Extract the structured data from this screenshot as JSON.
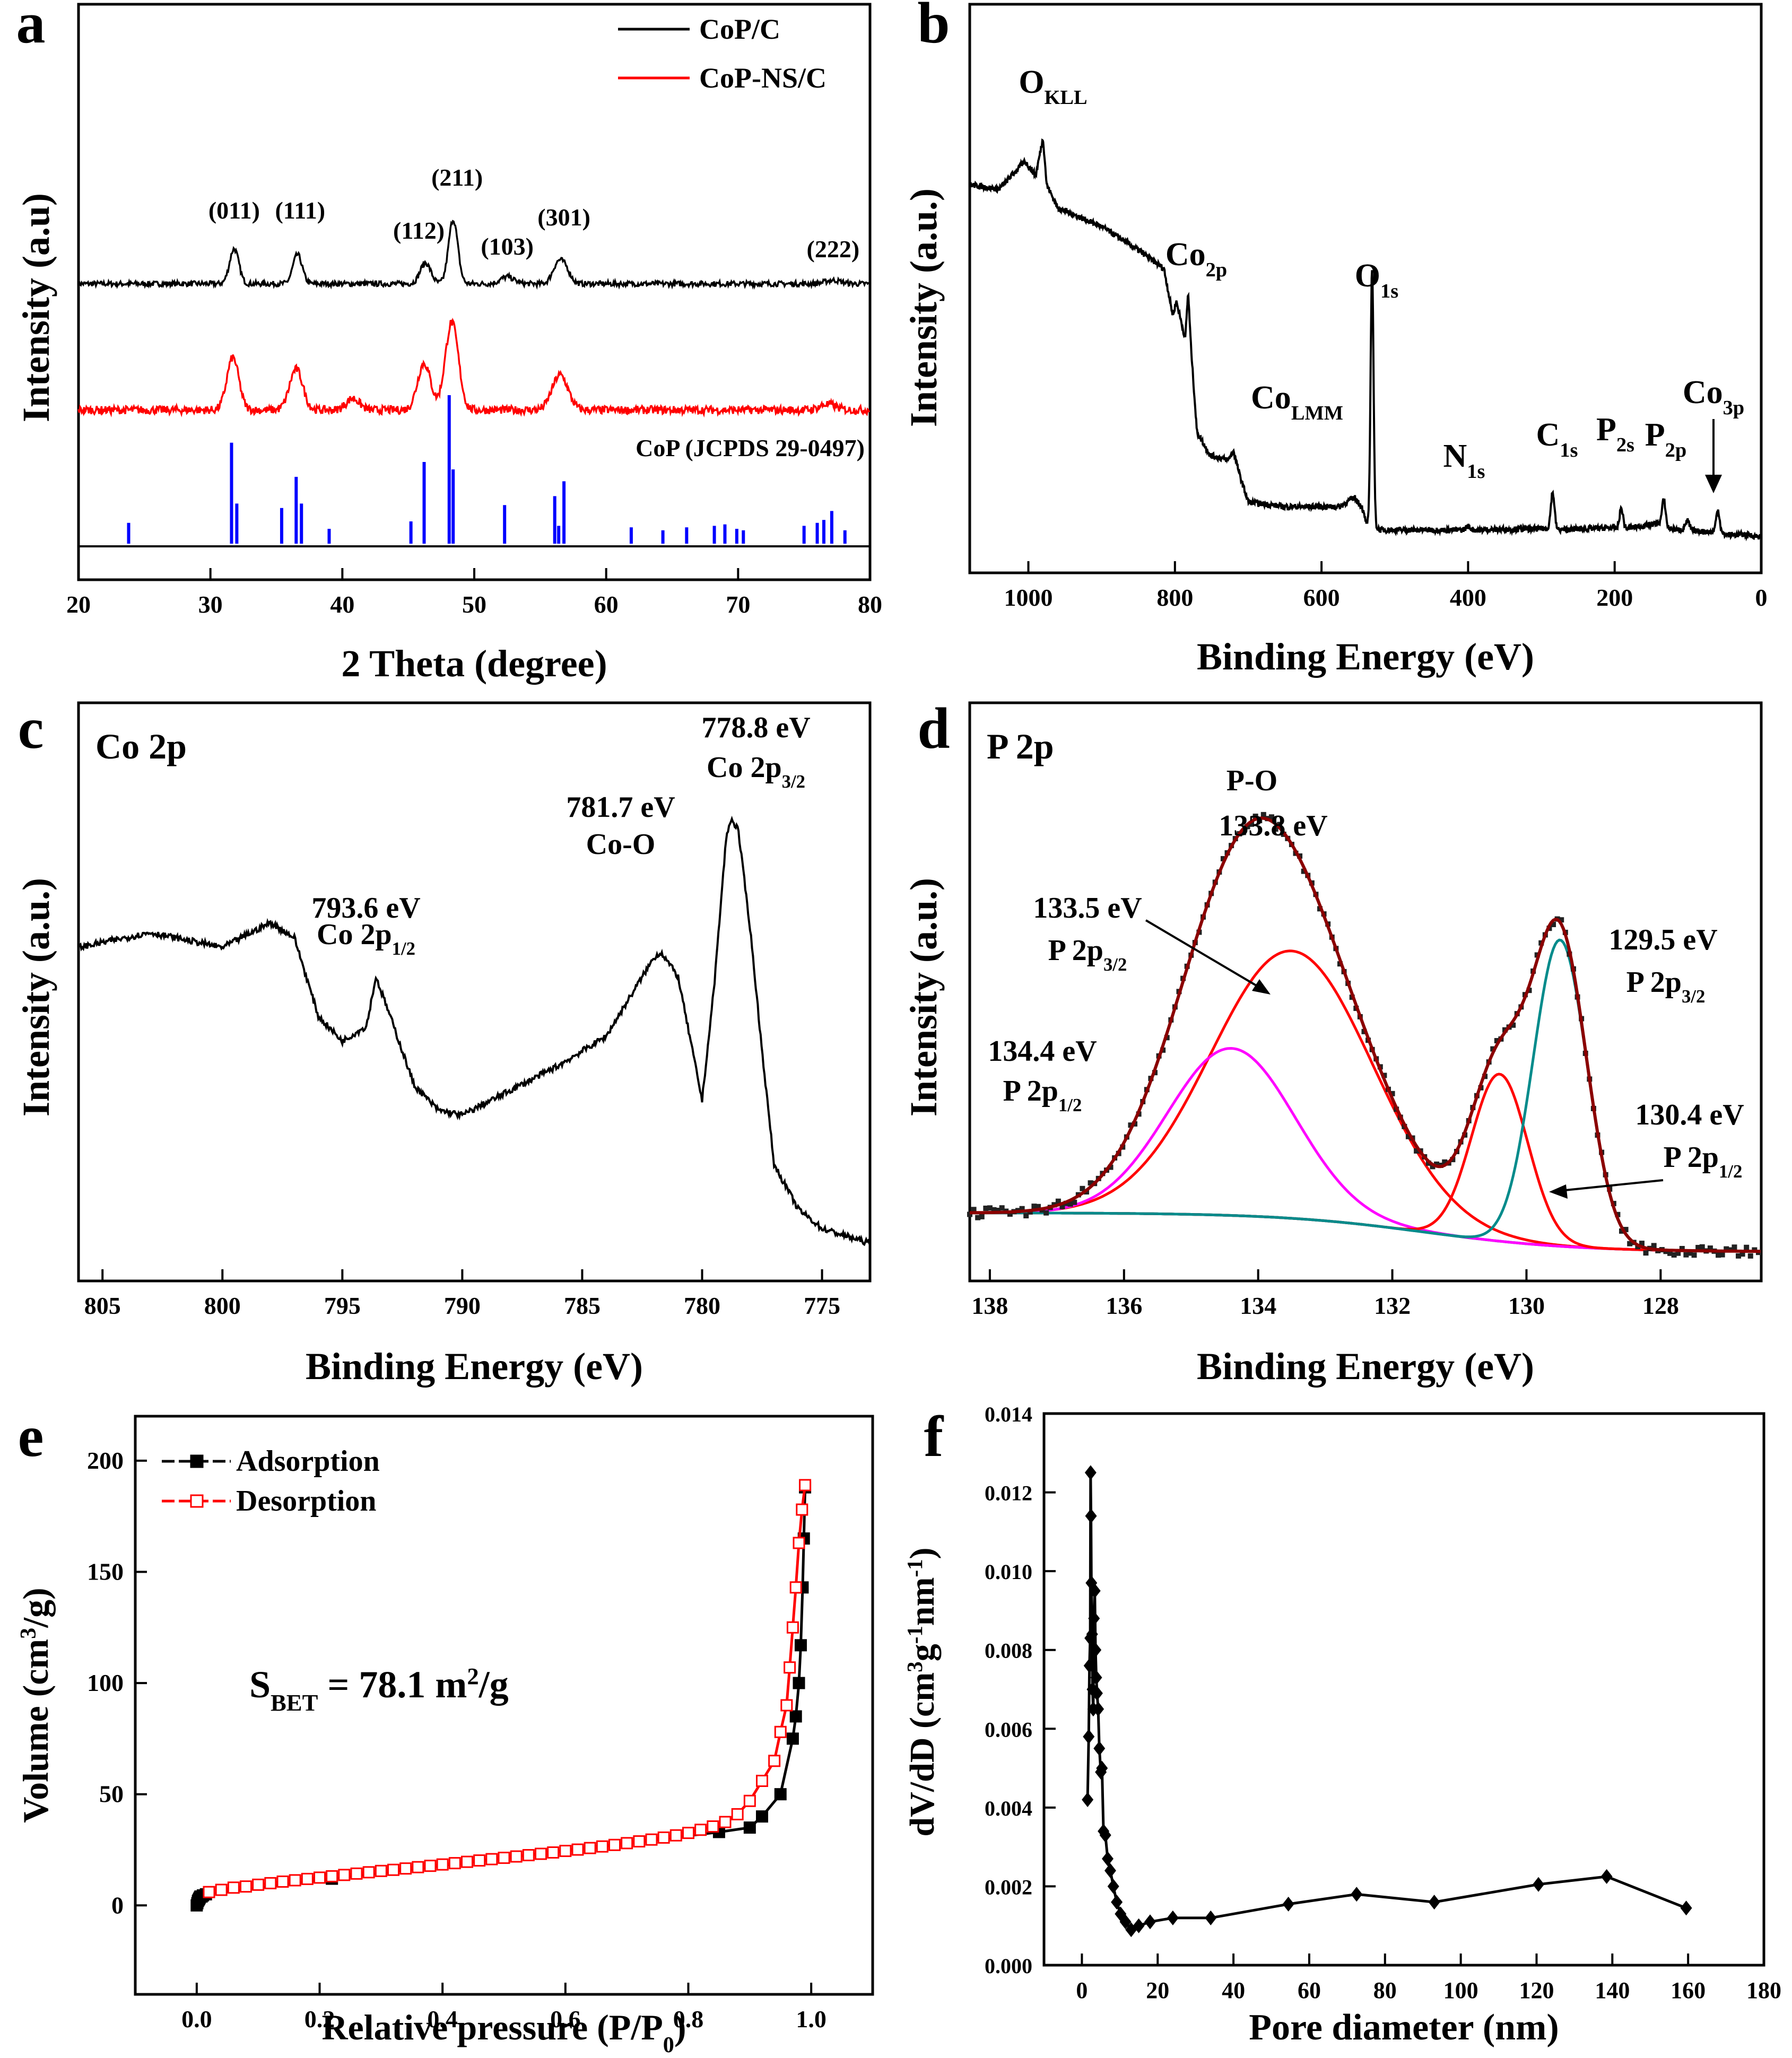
{
  "chart_data": [
    {
      "panel": "a",
      "type": "line",
      "xlabel": "2 Theta (degree)",
      "ylabel": "Intensity (a.u)",
      "xlim": [
        20,
        80
      ],
      "x_ticks": [
        20,
        30,
        40,
        50,
        60,
        70,
        80
      ],
      "legend": {
        "position": "top-right",
        "entries": [
          {
            "name": "CoP/C",
            "color": "#000000"
          },
          {
            "name": "CoP-NS/C",
            "color": "#ff0000"
          }
        ]
      },
      "series": [
        {
          "name": "CoP/C",
          "color": "#000000",
          "baseline": 0.55,
          "peaks": [
            [
              31.8,
              0.3,
              0.35
            ],
            [
              36.6,
              0.25,
              0.35
            ],
            [
              46.3,
              0.18,
              0.4
            ],
            [
              48.4,
              0.55,
              0.35
            ],
            [
              52.5,
              0.06,
              0.5
            ],
            [
              56.3,
              0.15,
              0.4
            ],
            [
              56.9,
              0.12,
              0.4
            ],
            [
              77.2,
              0.03,
              0.6
            ]
          ]
        },
        {
          "name": "CoP-NS/C",
          "color": "#ff0000",
          "baseline": 0.0,
          "peaks": [
            [
              31.7,
              0.45,
              0.45
            ],
            [
              36.5,
              0.35,
              0.5
            ],
            [
              40.8,
              0.1,
              0.5
            ],
            [
              46.2,
              0.4,
              0.5
            ],
            [
              48.3,
              0.75,
              0.5
            ],
            [
              56.5,
              0.3,
              0.6
            ],
            [
              76.8,
              0.05,
              0.6
            ]
          ]
        }
      ],
      "reference": {
        "name": "CoP (JCPDS 29-0497)",
        "color": "#0000ff",
        "lines": [
          [
            23.8,
            0.14
          ],
          [
            31.6,
            0.68
          ],
          [
            32.0,
            0.27
          ],
          [
            35.4,
            0.24
          ],
          [
            36.5,
            0.45
          ],
          [
            36.9,
            0.27
          ],
          [
            39.0,
            0.1
          ],
          [
            45.2,
            0.15
          ],
          [
            46.2,
            0.55
          ],
          [
            48.1,
            1.0
          ],
          [
            48.4,
            0.5
          ],
          [
            52.3,
            0.26
          ],
          [
            56.1,
            0.32
          ],
          [
            56.4,
            0.12
          ],
          [
            56.8,
            0.42
          ],
          [
            61.9,
            0.11
          ],
          [
            64.3,
            0.09
          ],
          [
            66.1,
            0.11
          ],
          [
            68.2,
            0.12
          ],
          [
            69.0,
            0.13
          ],
          [
            69.9,
            0.1
          ],
          [
            70.4,
            0.09
          ],
          [
            75.0,
            0.12
          ],
          [
            76.0,
            0.14
          ],
          [
            76.5,
            0.16
          ],
          [
            77.1,
            0.22
          ],
          [
            78.1,
            0.09
          ]
        ]
      },
      "peak_labels": [
        {
          "text": "(011)",
          "x": 31.8
        },
        {
          "text": "(111)",
          "x": 36.8
        },
        {
          "text": "(112)",
          "x": 45.8
        },
        {
          "text": "(211)",
          "x": 48.7
        },
        {
          "text": "(103)",
          "x": 52.5
        },
        {
          "text": "(301)",
          "x": 56.8
        },
        {
          "text": "(222)",
          "x": 77.2
        }
      ]
    },
    {
      "panel": "b",
      "type": "line",
      "xlabel": "Binding Energy (eV)",
      "ylabel": "Intensity (a.u.)",
      "xlim": [
        1080,
        0
      ],
      "x_ticks": [
        1000,
        800,
        600,
        400,
        200,
        0
      ],
      "color": "#000000",
      "curve": [
        [
          1080,
          0.75
        ],
        [
          1040,
          0.74
        ],
        [
          1005,
          0.8
        ],
        [
          990,
          0.77
        ],
        [
          980,
          0.85
        ],
        [
          975,
          0.75
        ],
        [
          960,
          0.7
        ],
        [
          900,
          0.66
        ],
        [
          850,
          0.61
        ],
        [
          815,
          0.57
        ],
        [
          803,
          0.47
        ],
        [
          798,
          0.5
        ],
        [
          792,
          0.46
        ],
        [
          786,
          0.42
        ],
        [
          782,
          0.52
        ],
        [
          778,
          0.4
        ],
        [
          770,
          0.22
        ],
        [
          752,
          0.17
        ],
        [
          728,
          0.16
        ],
        [
          720,
          0.18
        ],
        [
          712,
          0.13
        ],
        [
          700,
          0.07
        ],
        [
          650,
          0.06
        ],
        [
          575,
          0.06
        ],
        [
          555,
          0.08
        ],
        [
          545,
          0.06
        ],
        [
          540,
          0.03
        ],
        [
          536,
          0.02
        ],
        [
          531,
          0.02
        ],
        [
          520,
          0.01
        ],
        [
          500,
          0.01
        ],
        [
          402,
          0.01
        ],
        [
          290,
          0.013
        ],
        [
          285,
          0.01
        ],
        [
          200,
          0.015
        ],
        [
          195,
          0.01
        ],
        [
          140,
          0.025
        ],
        [
          135,
          0.015
        ],
        [
          110,
          0.01
        ],
        [
          61,
          0.005
        ],
        [
          57,
          0.0
        ],
        [
          20,
          0.0
        ],
        [
          0,
          -0.005
        ]
      ],
      "peaks": [
        [
          531,
          0.55,
          2
        ],
        [
          284.6,
          0.08,
          2.5
        ],
        [
          191,
          0.045,
          2.5
        ],
        [
          133,
          0.06,
          2.5
        ],
        [
          101,
          0.02,
          3
        ],
        [
          59,
          0.05,
          2.5
        ],
        [
          400,
          0.008,
          3
        ]
      ],
      "annotations": [
        {
          "main": "O",
          "sub": "KLL",
          "x": 980
        },
        {
          "main": "Co",
          "sub": "2p",
          "x": 780
        },
        {
          "main": "Co",
          "sub": "LMM",
          "x": 715
        },
        {
          "main": "O",
          "sub": "1s",
          "x": 531
        },
        {
          "main": "N",
          "sub": "1s",
          "x": 400
        },
        {
          "main": "C",
          "sub": "1s",
          "x": 284
        },
        {
          "main": "P",
          "sub": "2s",
          "x": 191
        },
        {
          "main": "P",
          "sub": "2p",
          "x": 133
        },
        {
          "main": "Co",
          "sub": "3p",
          "x": 59
        }
      ]
    },
    {
      "panel": "c",
      "type": "line",
      "title": "Co 2p",
      "xlabel": "Binding Energy (eV)",
      "ylabel": "Intensity (a.u.)",
      "xlim": [
        806,
        773
      ],
      "x_ticks": [
        805,
        800,
        795,
        790,
        785,
        780,
        775
      ],
      "color": "#000000",
      "curve": [
        [
          806,
          0.66
        ],
        [
          803,
          0.69
        ],
        [
          800,
          0.66
        ],
        [
          798,
          0.71
        ],
        [
          797,
          0.68
        ],
        [
          796,
          0.52
        ],
        [
          795,
          0.47
        ],
        [
          794,
          0.5
        ],
        [
          793.6,
          0.6
        ],
        [
          793,
          0.52
        ],
        [
          792,
          0.38
        ],
        [
          791,
          0.33
        ],
        [
          790,
          0.32
        ],
        [
          788,
          0.37
        ],
        [
          786,
          0.42
        ],
        [
          784,
          0.48
        ],
        [
          783,
          0.56
        ],
        [
          782,
          0.64
        ],
        [
          781.7,
          0.65
        ],
        [
          781,
          0.6
        ],
        [
          780,
          0.35
        ],
        [
          779.5,
          0.58
        ],
        [
          779,
          0.88
        ],
        [
          778.8,
          0.92
        ],
        [
          778.5,
          0.9
        ],
        [
          778,
          0.7
        ],
        [
          777.5,
          0.45
        ],
        [
          777,
          0.22
        ],
        [
          776,
          0.13
        ],
        [
          775,
          0.09
        ],
        [
          773,
          0.06
        ]
      ],
      "annotations": [
        {
          "value": "793.6 eV",
          "label": "Co 2p",
          "sub": "1/2",
          "x": 793.6
        },
        {
          "value": "781.7 eV",
          "label": "Co-O",
          "sub": "",
          "x": 781.7
        },
        {
          "value": "778.8 eV",
          "label": "Co 2p",
          "sub": "3/2",
          "x": 778.8
        }
      ]
    },
    {
      "panel": "d",
      "type": "line",
      "title": "P 2p",
      "xlabel": "Binding Energy (eV)",
      "ylabel": "Intensity (a.u.)",
      "xlim": [
        138.3,
        126.5
      ],
      "x_ticks": [
        138,
        136,
        134,
        132,
        130,
        128
      ],
      "components": [
        {
          "name": "P 2p3/2",
          "center": 133.5,
          "height": 0.48,
          "width": 1.2,
          "color": "#ff0000"
        },
        {
          "name": "P 2p1/2",
          "center": 134.4,
          "height": 0.3,
          "width": 0.95,
          "color": "#ff00ff"
        },
        {
          "name": "P 2p1/2",
          "center": 130.4,
          "height": 0.3,
          "width": 0.42,
          "color": "#ff0000"
        },
        {
          "name": "P 2p3/2",
          "center": 129.5,
          "height": 0.55,
          "width": 0.4,
          "color": "#008b8b"
        }
      ],
      "background": {
        "color": "#1e5a8c",
        "left": 0.07,
        "right": 0.0
      },
      "envelope_color": "#8b0000",
      "annotations": [
        {
          "name": "P-O",
          "value": "133.8 eV"
        },
        {
          "value": "133.5 eV",
          "label": "P 2p",
          "sub": "3/2"
        },
        {
          "value": "134.4 eV",
          "label": "P 2p",
          "sub": "1/2"
        },
        {
          "value": "129.5 eV",
          "label": "P 2p",
          "sub": "3/2"
        },
        {
          "value": "130.4 eV",
          "label": "P 2p",
          "sub": "1/2"
        }
      ]
    },
    {
      "panel": "e",
      "type": "scatter",
      "xlabel": "Relative pressure (P/P0)",
      "ylabel": "Volume (cm3/g)",
      "xlim": [
        -0.1,
        1.1
      ],
      "ylim": [
        -40,
        220
      ],
      "x_ticks": [
        0.0,
        0.2,
        0.4,
        0.6,
        0.8,
        1.0
      ],
      "y_ticks": [
        0,
        50,
        100,
        150,
        200
      ],
      "annotation": {
        "text": "S",
        "sub": "BET",
        "rest": " = 78.1 m",
        "sup": "2",
        "tail": "/g"
      },
      "series": [
        {
          "name": "Adsorption",
          "color": "#000000",
          "marker": "filled-square",
          "x": [
            0.0,
            0.001,
            0.002,
            0.003,
            0.004,
            0.005,
            0.006,
            0.008,
            0.01,
            0.015,
            0.22,
            0.85,
            0.9,
            0.92,
            0.95,
            0.97,
            0.975,
            0.98,
            0.983,
            0.986,
            0.988,
            0.99
          ],
          "y": [
            0,
            1,
            2,
            2.5,
            3,
            3.5,
            4,
            4,
            4.5,
            5,
            12,
            33,
            35,
            40,
            50,
            75,
            85,
            100,
            117,
            143,
            165,
            188
          ]
        },
        {
          "name": "Desorption",
          "color": "#ff0000",
          "marker": "open-square",
          "x": [
            0.02,
            0.04,
            0.06,
            0.08,
            0.1,
            0.12,
            0.14,
            0.16,
            0.18,
            0.2,
            0.22,
            0.24,
            0.26,
            0.28,
            0.3,
            0.32,
            0.34,
            0.36,
            0.38,
            0.4,
            0.42,
            0.44,
            0.46,
            0.48,
            0.5,
            0.52,
            0.54,
            0.56,
            0.58,
            0.6,
            0.62,
            0.64,
            0.66,
            0.68,
            0.7,
            0.72,
            0.74,
            0.76,
            0.78,
            0.8,
            0.82,
            0.84,
            0.86,
            0.88,
            0.9,
            0.92,
            0.94,
            0.95,
            0.96,
            0.965,
            0.97,
            0.975,
            0.98,
            0.985,
            0.99
          ],
          "y": [
            6,
            7,
            8,
            8.5,
            9.3,
            10,
            10.7,
            11.3,
            11.9,
            12.5,
            13.1,
            13.7,
            14.3,
            14.9,
            15.5,
            16,
            16.6,
            17.2,
            17.8,
            18.4,
            19,
            19.6,
            20.2,
            20.8,
            21.4,
            22,
            22.6,
            23.2,
            23.8,
            24.5,
            25.1,
            25.8,
            26.5,
            27.2,
            28,
            28.8,
            29.6,
            30.5,
            31.5,
            32.6,
            34,
            35.5,
            37.5,
            41,
            47,
            56,
            65,
            78,
            90,
            107,
            125,
            143,
            163,
            178,
            189
          ]
        }
      ]
    },
    {
      "panel": "f",
      "type": "line",
      "xlabel": "Pore diameter (nm)",
      "ylabel": "dV/dD (cm3g-1nm-1)",
      "xlim": [
        -10,
        180
      ],
      "ylim": [
        0.0,
        0.014
      ],
      "x_ticks": [
        0,
        20,
        40,
        60,
        80,
        100,
        120,
        140,
        160,
        180
      ],
      "y_ticks": [
        0.0,
        0.002,
        0.004,
        0.006,
        0.008,
        0.01,
        0.012,
        0.014
      ],
      "y_tick_labels": [
        "0.000",
        "0.002",
        "0.004",
        "0.006",
        "0.008",
        "0.010",
        "0.012",
        "0.014"
      ],
      "color": "#000000",
      "marker": "filled-diamond",
      "x": [
        1.5,
        1.8,
        2.0,
        2.2,
        2.3,
        2.4,
        2.5,
        2.7,
        2.8,
        3.0,
        3.2,
        3.4,
        3.6,
        3.8,
        4.0,
        4.3,
        4.6,
        5.0,
        5.3,
        5.7,
        6.2,
        6.8,
        7.5,
        8.3,
        9.2,
        10.2,
        11.5,
        13.0,
        15.0,
        18.0,
        24.0,
        34.0,
        54.5,
        72.5,
        93.0,
        120.5,
        138.5,
        159.5
      ],
      "y": [
        0.0042,
        0.0058,
        0.0076,
        0.0083,
        0.0125,
        0.0114,
        0.0097,
        0.0084,
        0.007,
        0.0065,
        0.0088,
        0.0095,
        0.008,
        0.0073,
        0.0069,
        0.0065,
        0.0055,
        0.0049,
        0.005,
        0.0034,
        0.0033,
        0.0027,
        0.0024,
        0.002,
        0.0016,
        0.0013,
        0.0011,
        0.0009,
        0.001,
        0.0011,
        0.0012,
        0.0012,
        0.00155,
        0.0018,
        0.0016,
        0.00205,
        0.00225,
        0.00145
      ]
    }
  ]
}
